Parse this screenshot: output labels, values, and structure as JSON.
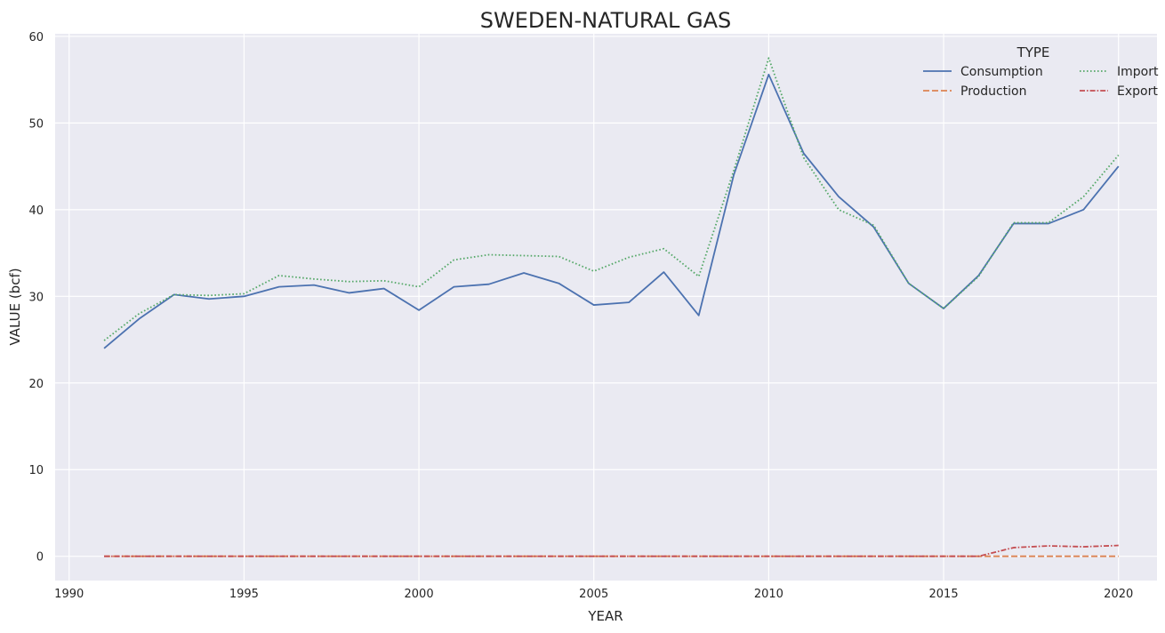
{
  "chart_data": {
    "type": "line",
    "title": "SWEDEN-NATURAL GAS",
    "xlabel": "YEAR",
    "ylabel": "VALUE (bcf)",
    "xlim": [
      1989.6,
      2021.1
    ],
    "ylim": [
      -2.8,
      60.3
    ],
    "xticks": [
      1990,
      1995,
      2000,
      2005,
      2010,
      2015,
      2020
    ],
    "yticks": [
      0,
      10,
      20,
      30,
      40,
      50,
      60
    ],
    "grid": true,
    "background": "#eaeaf2",
    "legend": {
      "title": "TYPE",
      "placement": "top-right",
      "columns": 2
    },
    "x": [
      1991,
      1992,
      1993,
      1994,
      1995,
      1996,
      1997,
      1998,
      1999,
      2000,
      2001,
      2002,
      2003,
      2004,
      2005,
      2006,
      2007,
      2008,
      2009,
      2010,
      2011,
      2012,
      2013,
      2014,
      2015,
      2016,
      2017,
      2018,
      2019,
      2020
    ],
    "series": [
      {
        "name": "Consumption",
        "color": "#4c72b0",
        "dash": "solid",
        "values": [
          24.0,
          27.4,
          30.2,
          29.7,
          30.0,
          31.1,
          31.3,
          30.4,
          30.9,
          28.4,
          31.1,
          31.4,
          32.7,
          31.5,
          29.0,
          29.3,
          32.8,
          27.8,
          44.0,
          55.6,
          46.5,
          41.5,
          38.0,
          31.5,
          28.6,
          32.4,
          38.4,
          38.4,
          40.0,
          45.0
        ]
      },
      {
        "name": "Production",
        "color": "#dd8452",
        "dash": "dashed",
        "values": [
          0,
          0,
          0,
          0,
          0,
          0,
          0,
          0,
          0,
          0,
          0,
          0,
          0,
          0,
          0,
          0,
          0,
          0,
          0,
          0,
          0,
          0,
          0,
          0,
          0,
          0,
          0,
          0,
          0,
          0
        ]
      },
      {
        "name": "Import",
        "color": "#55a868",
        "dash": "dotted",
        "values": [
          24.9,
          28.0,
          30.2,
          30.1,
          30.3,
          32.4,
          32.0,
          31.7,
          31.8,
          31.1,
          34.2,
          34.8,
          34.7,
          34.6,
          32.9,
          34.5,
          35.5,
          32.3,
          44.5,
          57.5,
          46.0,
          40.0,
          38.2,
          31.5,
          28.6,
          32.3,
          38.5,
          38.5,
          41.5,
          46.3
        ]
      },
      {
        "name": "Export",
        "color": "#c44e52",
        "dash": "dashdot",
        "values": [
          0,
          0,
          0,
          0,
          0,
          0,
          0,
          0,
          0,
          0,
          0,
          0,
          0,
          0,
          0,
          0,
          0,
          0,
          0,
          0,
          0,
          0,
          0,
          0,
          0,
          0,
          1.0,
          1.2,
          1.1,
          1.25
        ]
      }
    ]
  }
}
